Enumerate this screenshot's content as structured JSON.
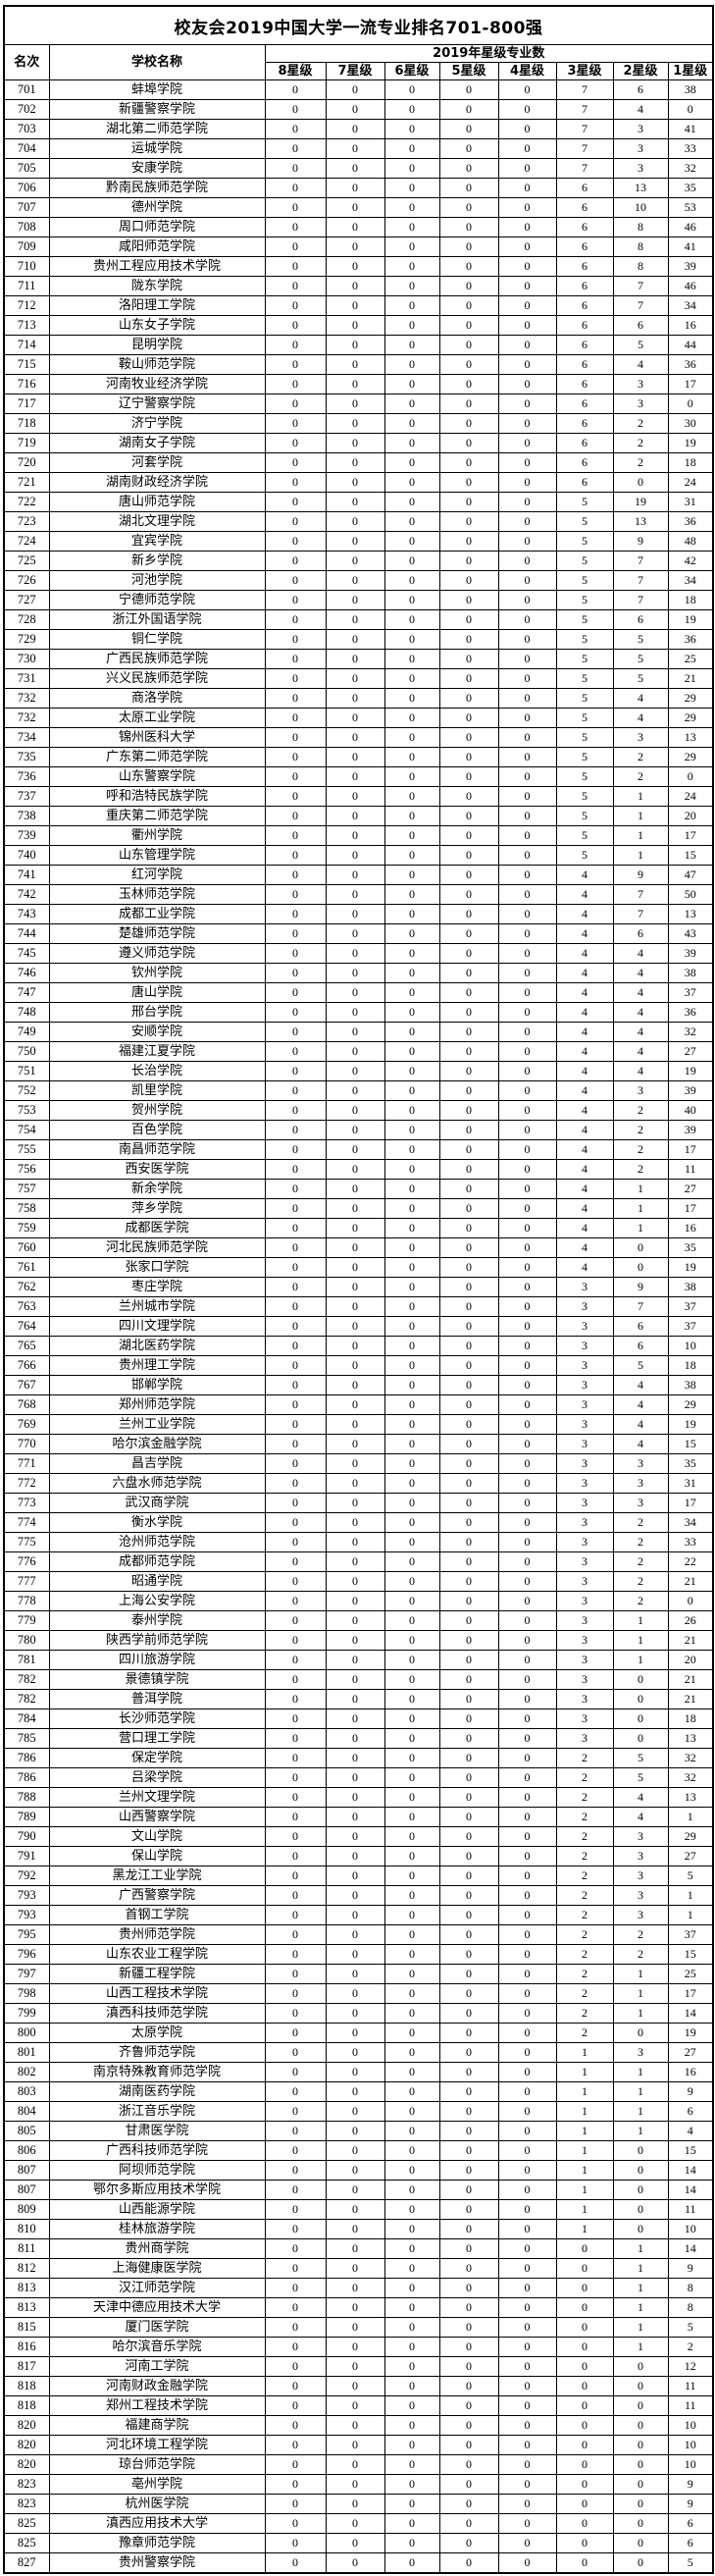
{
  "page": {
    "background_color": "#ffffff",
    "grid_color": "#000000",
    "text_color": "#000000"
  },
  "table": {
    "title": "校友会2019中国大学一流专业排名701-800强",
    "headers": {
      "rank": "名次",
      "school": "学校名称",
      "group": "2019年星级专业数",
      "star_columns": [
        "8星级",
        "7星级",
        "6星级",
        "5星级",
        "4星级",
        "3星级",
        "2星级",
        "1星级"
      ]
    }
  },
  "chart_data": {
    "type": "table",
    "title": "校友会2019中国大学一流专业排名701-800强",
    "columns": [
      "名次",
      "学校名称",
      "8星级",
      "7星级",
      "6星级",
      "5星级",
      "4星级",
      "3星级",
      "2星级",
      "1星级"
    ],
    "rows": [
      [
        701,
        "蚌埠学院",
        0,
        0,
        0,
        0,
        0,
        7,
        6,
        38
      ],
      [
        702,
        "新疆警察学院",
        0,
        0,
        0,
        0,
        0,
        7,
        4,
        0
      ],
      [
        703,
        "湖北第二师范学院",
        0,
        0,
        0,
        0,
        0,
        7,
        3,
        41
      ],
      [
        704,
        "运城学院",
        0,
        0,
        0,
        0,
        0,
        7,
        3,
        33
      ],
      [
        705,
        "安康学院",
        0,
        0,
        0,
        0,
        0,
        7,
        3,
        32
      ],
      [
        706,
        "黔南民族师范学院",
        0,
        0,
        0,
        0,
        0,
        6,
        13,
        35
      ],
      [
        707,
        "德州学院",
        0,
        0,
        0,
        0,
        0,
        6,
        10,
        53
      ],
      [
        708,
        "周口师范学院",
        0,
        0,
        0,
        0,
        0,
        6,
        8,
        46
      ],
      [
        709,
        "咸阳师范学院",
        0,
        0,
        0,
        0,
        0,
        6,
        8,
        41
      ],
      [
        710,
        "贵州工程应用技术学院",
        0,
        0,
        0,
        0,
        0,
        6,
        8,
        39
      ],
      [
        711,
        "陇东学院",
        0,
        0,
        0,
        0,
        0,
        6,
        7,
        46
      ],
      [
        712,
        "洛阳理工学院",
        0,
        0,
        0,
        0,
        0,
        6,
        7,
        34
      ],
      [
        713,
        "山东女子学院",
        0,
        0,
        0,
        0,
        0,
        6,
        6,
        16
      ],
      [
        714,
        "昆明学院",
        0,
        0,
        0,
        0,
        0,
        6,
        5,
        44
      ],
      [
        715,
        "鞍山师范学院",
        0,
        0,
        0,
        0,
        0,
        6,
        4,
        36
      ],
      [
        716,
        "河南牧业经济学院",
        0,
        0,
        0,
        0,
        0,
        6,
        3,
        17
      ],
      [
        717,
        "辽宁警察学院",
        0,
        0,
        0,
        0,
        0,
        6,
        3,
        0
      ],
      [
        718,
        "济宁学院",
        0,
        0,
        0,
        0,
        0,
        6,
        2,
        30
      ],
      [
        719,
        "湖南女子学院",
        0,
        0,
        0,
        0,
        0,
        6,
        2,
        19
      ],
      [
        720,
        "河套学院",
        0,
        0,
        0,
        0,
        0,
        6,
        2,
        18
      ],
      [
        721,
        "湖南财政经济学院",
        0,
        0,
        0,
        0,
        0,
        6,
        0,
        24
      ],
      [
        722,
        "唐山师范学院",
        0,
        0,
        0,
        0,
        0,
        5,
        19,
        31
      ],
      [
        723,
        "湖北文理学院",
        0,
        0,
        0,
        0,
        0,
        5,
        13,
        36
      ],
      [
        724,
        "宜宾学院",
        0,
        0,
        0,
        0,
        0,
        5,
        9,
        48
      ],
      [
        725,
        "新乡学院",
        0,
        0,
        0,
        0,
        0,
        5,
        7,
        42
      ],
      [
        726,
        "河池学院",
        0,
        0,
        0,
        0,
        0,
        5,
        7,
        34
      ],
      [
        727,
        "宁德师范学院",
        0,
        0,
        0,
        0,
        0,
        5,
        7,
        18
      ],
      [
        728,
        "浙江外国语学院",
        0,
        0,
        0,
        0,
        0,
        5,
        6,
        19
      ],
      [
        729,
        "铜仁学院",
        0,
        0,
        0,
        0,
        0,
        5,
        5,
        36
      ],
      [
        730,
        "广西民族师范学院",
        0,
        0,
        0,
        0,
        0,
        5,
        5,
        25
      ],
      [
        731,
        "兴义民族师范学院",
        0,
        0,
        0,
        0,
        0,
        5,
        5,
        21
      ],
      [
        732,
        "商洛学院",
        0,
        0,
        0,
        0,
        0,
        5,
        4,
        29
      ],
      [
        732,
        "太原工业学院",
        0,
        0,
        0,
        0,
        0,
        5,
        4,
        29
      ],
      [
        734,
        "锦州医科大学",
        0,
        0,
        0,
        0,
        0,
        5,
        3,
        13
      ],
      [
        735,
        "广东第二师范学院",
        0,
        0,
        0,
        0,
        0,
        5,
        2,
        29
      ],
      [
        736,
        "山东警察学院",
        0,
        0,
        0,
        0,
        0,
        5,
        2,
        0
      ],
      [
        737,
        "呼和浩特民族学院",
        0,
        0,
        0,
        0,
        0,
        5,
        1,
        24
      ],
      [
        738,
        "重庆第二师范学院",
        0,
        0,
        0,
        0,
        0,
        5,
        1,
        20
      ],
      [
        739,
        "衢州学院",
        0,
        0,
        0,
        0,
        0,
        5,
        1,
        17
      ],
      [
        740,
        "山东管理学院",
        0,
        0,
        0,
        0,
        0,
        5,
        1,
        15
      ],
      [
        741,
        "红河学院",
        0,
        0,
        0,
        0,
        0,
        4,
        9,
        47
      ],
      [
        742,
        "玉林师范学院",
        0,
        0,
        0,
        0,
        0,
        4,
        7,
        50
      ],
      [
        743,
        "成都工业学院",
        0,
        0,
        0,
        0,
        0,
        4,
        7,
        13
      ],
      [
        744,
        "楚雄师范学院",
        0,
        0,
        0,
        0,
        0,
        4,
        6,
        43
      ],
      [
        745,
        "遵义师范学院",
        0,
        0,
        0,
        0,
        0,
        4,
        4,
        39
      ],
      [
        746,
        "钦州学院",
        0,
        0,
        0,
        0,
        0,
        4,
        4,
        38
      ],
      [
        747,
        "唐山学院",
        0,
        0,
        0,
        0,
        0,
        4,
        4,
        37
      ],
      [
        748,
        "邢台学院",
        0,
        0,
        0,
        0,
        0,
        4,
        4,
        36
      ],
      [
        749,
        "安顺学院",
        0,
        0,
        0,
        0,
        0,
        4,
        4,
        32
      ],
      [
        750,
        "福建江夏学院",
        0,
        0,
        0,
        0,
        0,
        4,
        4,
        27
      ],
      [
        751,
        "长治学院",
        0,
        0,
        0,
        0,
        0,
        4,
        4,
        19
      ],
      [
        752,
        "凯里学院",
        0,
        0,
        0,
        0,
        0,
        4,
        3,
        39
      ],
      [
        753,
        "贺州学院",
        0,
        0,
        0,
        0,
        0,
        4,
        2,
        40
      ],
      [
        754,
        "百色学院",
        0,
        0,
        0,
        0,
        0,
        4,
        2,
        39
      ],
      [
        755,
        "南昌师范学院",
        0,
        0,
        0,
        0,
        0,
        4,
        2,
        17
      ],
      [
        756,
        "西安医学院",
        0,
        0,
        0,
        0,
        0,
        4,
        2,
        11
      ],
      [
        757,
        "新余学院",
        0,
        0,
        0,
        0,
        0,
        4,
        1,
        27
      ],
      [
        758,
        "萍乡学院",
        0,
        0,
        0,
        0,
        0,
        4,
        1,
        17
      ],
      [
        759,
        "成都医学院",
        0,
        0,
        0,
        0,
        0,
        4,
        1,
        16
      ],
      [
        760,
        "河北民族师范学院",
        0,
        0,
        0,
        0,
        0,
        4,
        0,
        35
      ],
      [
        761,
        "张家口学院",
        0,
        0,
        0,
        0,
        0,
        4,
        0,
        19
      ],
      [
        762,
        "枣庄学院",
        0,
        0,
        0,
        0,
        0,
        3,
        9,
        38
      ],
      [
        763,
        "兰州城市学院",
        0,
        0,
        0,
        0,
        0,
        3,
        7,
        37
      ],
      [
        764,
        "四川文理学院",
        0,
        0,
        0,
        0,
        0,
        3,
        6,
        37
      ],
      [
        765,
        "湖北医药学院",
        0,
        0,
        0,
        0,
        0,
        3,
        6,
        10
      ],
      [
        766,
        "贵州理工学院",
        0,
        0,
        0,
        0,
        0,
        3,
        5,
        18
      ],
      [
        767,
        "邯郸学院",
        0,
        0,
        0,
        0,
        0,
        3,
        4,
        38
      ],
      [
        768,
        "郑州师范学院",
        0,
        0,
        0,
        0,
        0,
        3,
        4,
        29
      ],
      [
        769,
        "兰州工业学院",
        0,
        0,
        0,
        0,
        0,
        3,
        4,
        19
      ],
      [
        770,
        "哈尔滨金融学院",
        0,
        0,
        0,
        0,
        0,
        3,
        4,
        15
      ],
      [
        771,
        "昌吉学院",
        0,
        0,
        0,
        0,
        0,
        3,
        3,
        35
      ],
      [
        772,
        "六盘水师范学院",
        0,
        0,
        0,
        0,
        0,
        3,
        3,
        31
      ],
      [
        773,
        "武汉商学院",
        0,
        0,
        0,
        0,
        0,
        3,
        3,
        17
      ],
      [
        774,
        "衡水学院",
        0,
        0,
        0,
        0,
        0,
        3,
        2,
        34
      ],
      [
        775,
        "沧州师范学院",
        0,
        0,
        0,
        0,
        0,
        3,
        2,
        33
      ],
      [
        776,
        "成都师范学院",
        0,
        0,
        0,
        0,
        0,
        3,
        2,
        22
      ],
      [
        777,
        "昭通学院",
        0,
        0,
        0,
        0,
        0,
        3,
        2,
        21
      ],
      [
        778,
        "上海公安学院",
        0,
        0,
        0,
        0,
        0,
        3,
        2,
        0
      ],
      [
        779,
        "泰州学院",
        0,
        0,
        0,
        0,
        0,
        3,
        1,
        26
      ],
      [
        780,
        "陕西学前师范学院",
        0,
        0,
        0,
        0,
        0,
        3,
        1,
        21
      ],
      [
        781,
        "四川旅游学院",
        0,
        0,
        0,
        0,
        0,
        3,
        1,
        20
      ],
      [
        782,
        "景德镇学院",
        0,
        0,
        0,
        0,
        0,
        3,
        0,
        21
      ],
      [
        782,
        "普洱学院",
        0,
        0,
        0,
        0,
        0,
        3,
        0,
        21
      ],
      [
        784,
        "长沙师范学院",
        0,
        0,
        0,
        0,
        0,
        3,
        0,
        18
      ],
      [
        785,
        "营口理工学院",
        0,
        0,
        0,
        0,
        0,
        3,
        0,
        13
      ],
      [
        786,
        "保定学院",
        0,
        0,
        0,
        0,
        0,
        2,
        5,
        32
      ],
      [
        786,
        "吕梁学院",
        0,
        0,
        0,
        0,
        0,
        2,
        5,
        32
      ],
      [
        788,
        "兰州文理学院",
        0,
        0,
        0,
        0,
        0,
        2,
        4,
        13
      ],
      [
        789,
        "山西警察学院",
        0,
        0,
        0,
        0,
        0,
        2,
        4,
        1
      ],
      [
        790,
        "文山学院",
        0,
        0,
        0,
        0,
        0,
        2,
        3,
        29
      ],
      [
        791,
        "保山学院",
        0,
        0,
        0,
        0,
        0,
        2,
        3,
        27
      ],
      [
        792,
        "黑龙江工业学院",
        0,
        0,
        0,
        0,
        0,
        2,
        3,
        5
      ],
      [
        793,
        "广西警察学院",
        0,
        0,
        0,
        0,
        0,
        2,
        3,
        1
      ],
      [
        793,
        "首钢工学院",
        0,
        0,
        0,
        0,
        0,
        2,
        3,
        1
      ],
      [
        795,
        "贵州师范学院",
        0,
        0,
        0,
        0,
        0,
        2,
        2,
        37
      ],
      [
        796,
        "山东农业工程学院",
        0,
        0,
        0,
        0,
        0,
        2,
        2,
        15
      ],
      [
        797,
        "新疆工程学院",
        0,
        0,
        0,
        0,
        0,
        2,
        1,
        25
      ],
      [
        798,
        "山西工程技术学院",
        0,
        0,
        0,
        0,
        0,
        2,
        1,
        17
      ],
      [
        799,
        "滇西科技师范学院",
        0,
        0,
        0,
        0,
        0,
        2,
        1,
        14
      ],
      [
        800,
        "太原学院",
        0,
        0,
        0,
        0,
        0,
        2,
        0,
        19
      ],
      [
        801,
        "齐鲁师范学院",
        0,
        0,
        0,
        0,
        0,
        1,
        3,
        27
      ],
      [
        802,
        "南京特殊教育师范学院",
        0,
        0,
        0,
        0,
        0,
        1,
        1,
        16
      ],
      [
        803,
        "湖南医药学院",
        0,
        0,
        0,
        0,
        0,
        1,
        1,
        9
      ],
      [
        804,
        "浙江音乐学院",
        0,
        0,
        0,
        0,
        0,
        1,
        1,
        6
      ],
      [
        805,
        "甘肃医学院",
        0,
        0,
        0,
        0,
        0,
        1,
        1,
        4
      ],
      [
        806,
        "广西科技师范学院",
        0,
        0,
        0,
        0,
        0,
        1,
        0,
        15
      ],
      [
        807,
        "阿坝师范学院",
        0,
        0,
        0,
        0,
        0,
        1,
        0,
        14
      ],
      [
        807,
        "鄂尔多斯应用技术学院",
        0,
        0,
        0,
        0,
        0,
        1,
        0,
        14
      ],
      [
        809,
        "山西能源学院",
        0,
        0,
        0,
        0,
        0,
        1,
        0,
        11
      ],
      [
        810,
        "桂林旅游学院",
        0,
        0,
        0,
        0,
        0,
        1,
        0,
        10
      ],
      [
        811,
        "贵州商学院",
        0,
        0,
        0,
        0,
        0,
        0,
        1,
        14
      ],
      [
        812,
        "上海健康医学院",
        0,
        0,
        0,
        0,
        0,
        0,
        1,
        9
      ],
      [
        813,
        "汉江师范学院",
        0,
        0,
        0,
        0,
        0,
        0,
        1,
        8
      ],
      [
        813,
        "天津中德应用技术大学",
        0,
        0,
        0,
        0,
        0,
        0,
        1,
        8
      ],
      [
        815,
        "厦门医学院",
        0,
        0,
        0,
        0,
        0,
        0,
        1,
        5
      ],
      [
        816,
        "哈尔滨音乐学院",
        0,
        0,
        0,
        0,
        0,
        0,
        1,
        2
      ],
      [
        817,
        "河南工学院",
        0,
        0,
        0,
        0,
        0,
        0,
        0,
        12
      ],
      [
        818,
        "河南财政金融学院",
        0,
        0,
        0,
        0,
        0,
        0,
        0,
        11
      ],
      [
        818,
        "郑州工程技术学院",
        0,
        0,
        0,
        0,
        0,
        0,
        0,
        11
      ],
      [
        820,
        "福建商学院",
        0,
        0,
        0,
        0,
        0,
        0,
        0,
        10
      ],
      [
        820,
        "河北环境工程学院",
        0,
        0,
        0,
        0,
        0,
        0,
        0,
        10
      ],
      [
        820,
        "琼台师范学院",
        0,
        0,
        0,
        0,
        0,
        0,
        0,
        10
      ],
      [
        823,
        "亳州学院",
        0,
        0,
        0,
        0,
        0,
        0,
        0,
        9
      ],
      [
        823,
        "杭州医学院",
        0,
        0,
        0,
        0,
        0,
        0,
        0,
        9
      ],
      [
        825,
        "滇西应用技术大学",
        0,
        0,
        0,
        0,
        0,
        0,
        0,
        6
      ],
      [
        825,
        "豫章师范学院",
        0,
        0,
        0,
        0,
        0,
        0,
        0,
        6
      ],
      [
        827,
        "贵州警察学院",
        0,
        0,
        0,
        0,
        0,
        0,
        0,
        5
      ]
    ]
  }
}
